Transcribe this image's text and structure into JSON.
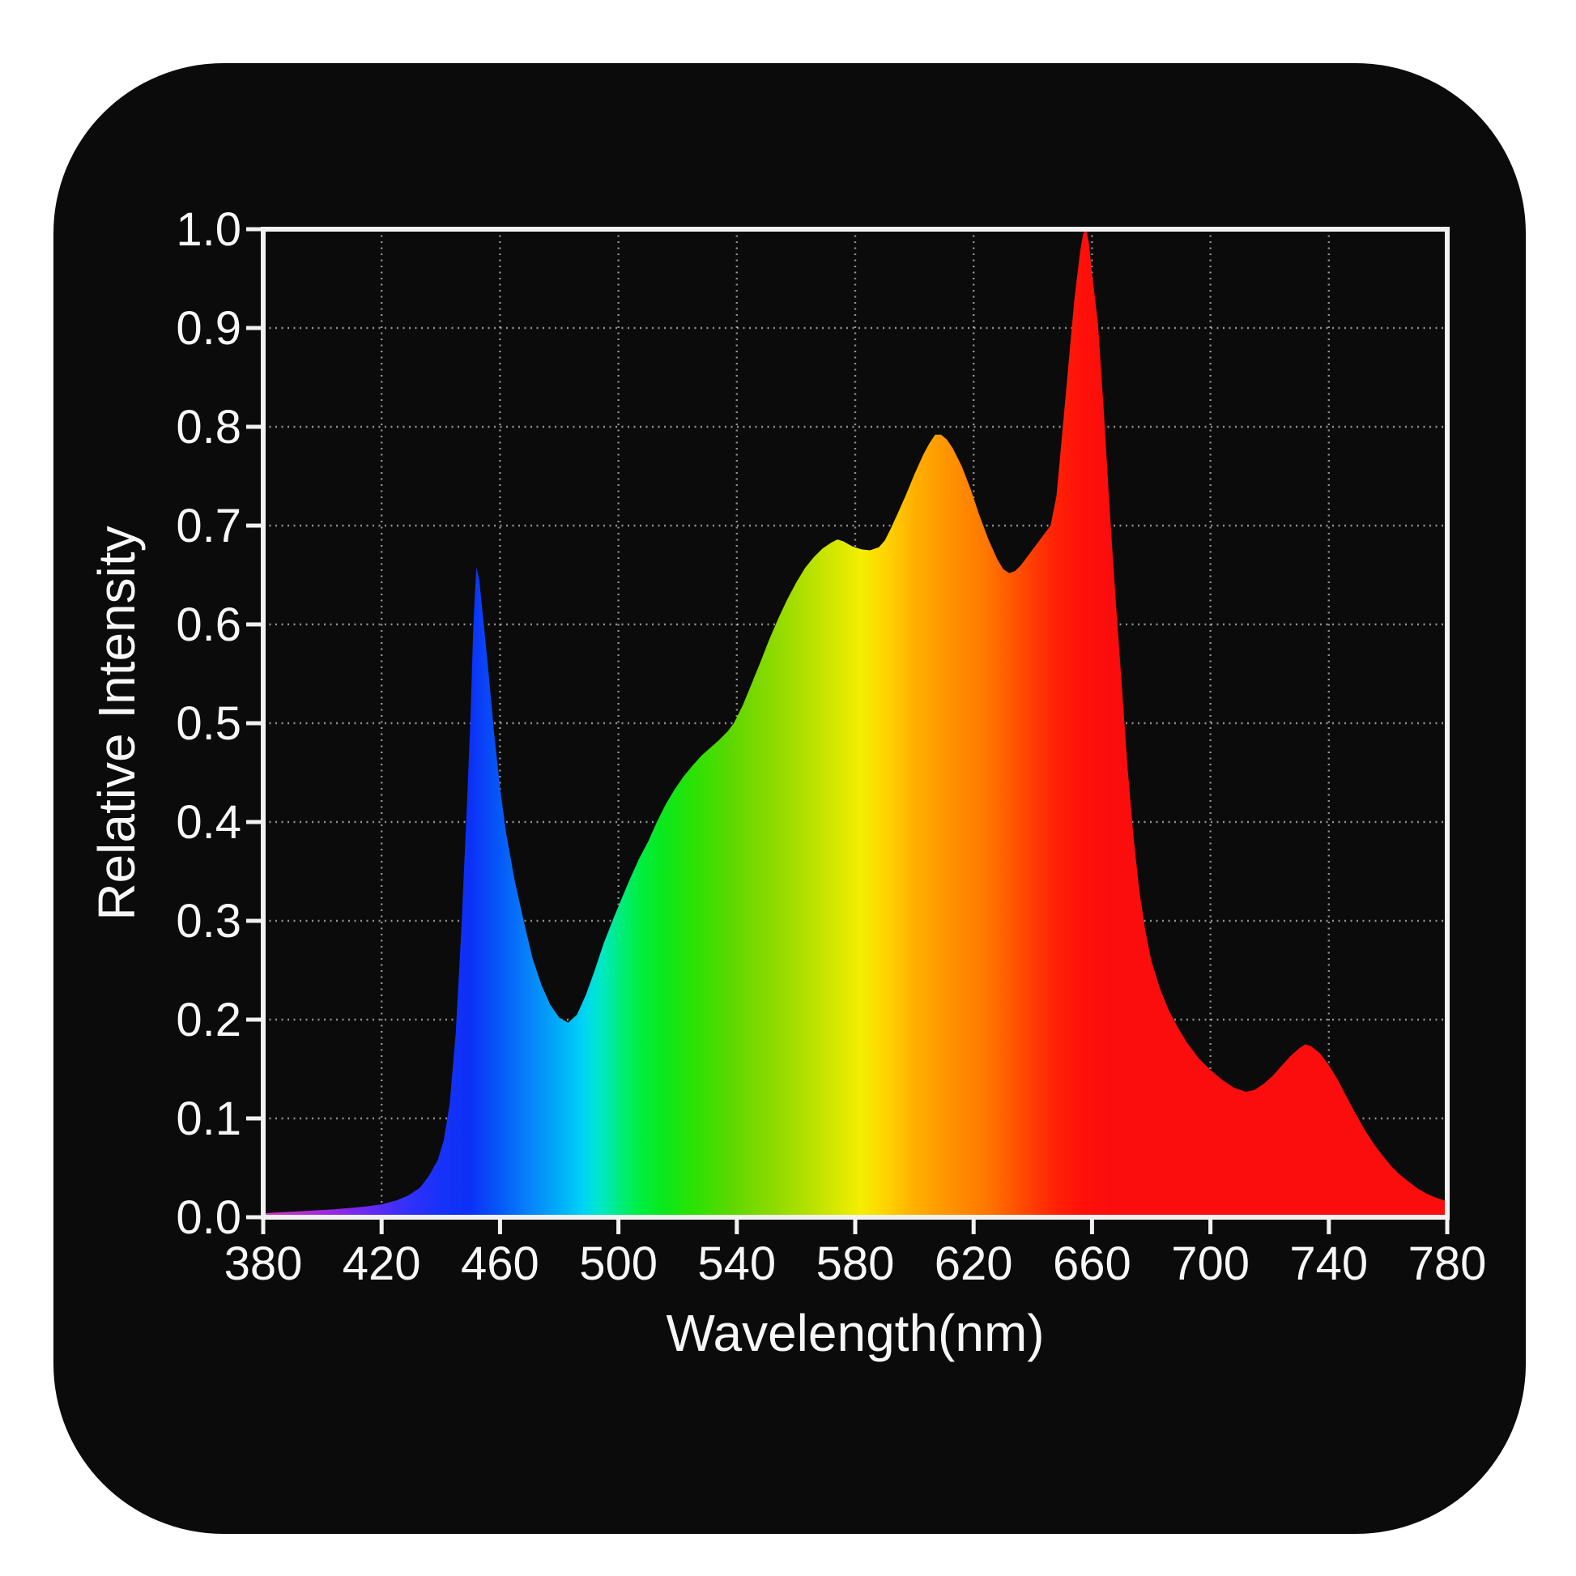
{
  "page": {
    "background": "#ffffff"
  },
  "card": {
    "background": "#0b0b0b"
  },
  "colors": {
    "text": "#f7f7f7",
    "frame": "#f2f2f2",
    "grid": "rgba(255,255,255,0.55)",
    "tick": "#f2f2f2"
  },
  "chart_data": {
    "type": "area",
    "title": "",
    "xlabel": "Wavelength(nm)",
    "ylabel": "Relative Intensity",
    "xlim": [
      380,
      780
    ],
    "ylim": [
      0.0,
      1.0
    ],
    "grid": {
      "style": "dotted",
      "vertical_every_nm": 40,
      "horizontal_every": 0.1
    },
    "x_ticks": [
      380,
      420,
      460,
      500,
      540,
      580,
      620,
      660,
      700,
      740,
      780
    ],
    "y_tick_values": [
      0.0,
      0.1,
      0.2,
      0.3,
      0.4,
      0.5,
      0.6,
      0.7,
      0.8,
      0.9,
      1.0
    ],
    "y_tick_labels": [
      "0.0",
      "0.1",
      "0.2",
      "0.3",
      "0.4",
      "0.5",
      "0.6",
      "0.7",
      "0.8",
      "0.9",
      "1.0"
    ],
    "features": {
      "blue_peak": {
        "nm": 452,
        "intensity": 0.66
      },
      "blue_green_valley": {
        "nm": 483,
        "intensity": 0.2
      },
      "yellow_local_peak": {
        "nm": 575,
        "intensity": 0.69
      },
      "orange_peak": {
        "nm": 607,
        "intensity": 0.79
      },
      "pre_red_dip": {
        "nm": 632,
        "intensity": 0.65
      },
      "red_peak": {
        "nm": 658,
        "intensity": 1.0
      },
      "far_red_bump": {
        "nm": 732,
        "intensity": 0.175
      }
    },
    "series": [
      {
        "name": "relative-intensity-spectrum",
        "points": [
          [
            380,
            0.004
          ],
          [
            386,
            0.005
          ],
          [
            392,
            0.006
          ],
          [
            398,
            0.007
          ],
          [
            404,
            0.008
          ],
          [
            410,
            0.0095
          ],
          [
            415,
            0.011
          ],
          [
            420,
            0.013
          ],
          [
            425,
            0.017
          ],
          [
            429,
            0.022
          ],
          [
            433,
            0.03
          ],
          [
            436,
            0.042
          ],
          [
            439,
            0.058
          ],
          [
            441,
            0.078
          ],
          [
            443,
            0.115
          ],
          [
            445,
            0.185
          ],
          [
            447,
            0.295
          ],
          [
            449,
            0.43
          ],
          [
            450,
            0.505
          ],
          [
            451,
            0.6
          ],
          [
            452,
            0.658
          ],
          [
            453,
            0.645
          ],
          [
            454,
            0.615
          ],
          [
            456,
            0.555
          ],
          [
            458,
            0.49
          ],
          [
            460,
            0.435
          ],
          [
            462,
            0.39
          ],
          [
            465,
            0.34
          ],
          [
            468,
            0.3
          ],
          [
            471,
            0.262
          ],
          [
            474,
            0.235
          ],
          [
            477,
            0.215
          ],
          [
            480,
            0.202
          ],
          [
            483,
            0.197
          ],
          [
            486,
            0.205
          ],
          [
            489,
            0.225
          ],
          [
            492,
            0.25
          ],
          [
            495,
            0.277
          ],
          [
            498,
            0.3
          ],
          [
            501,
            0.322
          ],
          [
            504,
            0.343
          ],
          [
            507,
            0.363
          ],
          [
            510,
            0.38
          ],
          [
            513,
            0.4
          ],
          [
            516,
            0.418
          ],
          [
            519,
            0.433
          ],
          [
            522,
            0.446
          ],
          [
            525,
            0.457
          ],
          [
            528,
            0.467
          ],
          [
            531,
            0.475
          ],
          [
            534,
            0.483
          ],
          [
            537,
            0.492
          ],
          [
            539,
            0.5
          ],
          [
            542,
            0.518
          ],
          [
            545,
            0.54
          ],
          [
            548,
            0.562
          ],
          [
            551,
            0.585
          ],
          [
            554,
            0.606
          ],
          [
            557,
            0.625
          ],
          [
            560,
            0.642
          ],
          [
            563,
            0.657
          ],
          [
            566,
            0.668
          ],
          [
            569,
            0.677
          ],
          [
            572,
            0.683
          ],
          [
            574,
            0.686
          ],
          [
            576,
            0.684
          ],
          [
            579,
            0.679
          ],
          [
            582,
            0.676
          ],
          [
            585,
            0.675
          ],
          [
            588,
            0.678
          ],
          [
            590,
            0.685
          ],
          [
            592,
            0.697
          ],
          [
            594,
            0.71
          ],
          [
            597,
            0.73
          ],
          [
            600,
            0.752
          ],
          [
            603,
            0.772
          ],
          [
            605,
            0.783
          ],
          [
            607,
            0.792
          ],
          [
            609,
            0.792
          ],
          [
            611,
            0.787
          ],
          [
            613,
            0.778
          ],
          [
            616,
            0.76
          ],
          [
            619,
            0.737
          ],
          [
            622,
            0.71
          ],
          [
            625,
            0.686
          ],
          [
            628,
            0.666
          ],
          [
            630,
            0.656
          ],
          [
            632,
            0.652
          ],
          [
            634,
            0.654
          ],
          [
            636,
            0.66
          ],
          [
            638,
            0.668
          ],
          [
            640,
            0.676
          ],
          [
            642,
            0.684
          ],
          [
            644,
            0.692
          ],
          [
            646,
            0.7
          ],
          [
            648,
            0.73
          ],
          [
            650,
            0.795
          ],
          [
            652,
            0.862
          ],
          [
            654,
            0.928
          ],
          [
            656,
            0.978
          ],
          [
            657,
            0.995
          ],
          [
            658,
            1.0
          ],
          [
            659,
            0.985
          ],
          [
            660,
            0.955
          ],
          [
            662,
            0.905
          ],
          [
            664,
            0.815
          ],
          [
            666,
            0.715
          ],
          [
            668,
            0.625
          ],
          [
            670,
            0.54
          ],
          [
            672,
            0.455
          ],
          [
            674,
            0.385
          ],
          [
            676,
            0.33
          ],
          [
            678,
            0.29
          ],
          [
            680,
            0.26
          ],
          [
            683,
            0.231
          ],
          [
            686,
            0.209
          ],
          [
            689,
            0.192
          ],
          [
            692,
            0.177
          ],
          [
            696,
            0.161
          ],
          [
            700,
            0.149
          ],
          [
            704,
            0.139
          ],
          [
            708,
            0.131
          ],
          [
            712,
            0.127
          ],
          [
            715,
            0.129
          ],
          [
            718,
            0.135
          ],
          [
            721,
            0.143
          ],
          [
            724,
            0.153
          ],
          [
            727,
            0.163
          ],
          [
            730,
            0.171
          ],
          [
            732,
            0.175
          ],
          [
            734,
            0.173
          ],
          [
            737,
            0.166
          ],
          [
            740,
            0.154
          ],
          [
            743,
            0.139
          ],
          [
            746,
            0.122
          ],
          [
            749,
            0.105
          ],
          [
            752,
            0.089
          ],
          [
            755,
            0.075
          ],
          [
            758,
            0.063
          ],
          [
            761,
            0.052
          ],
          [
            764,
            0.043
          ],
          [
            767,
            0.036
          ],
          [
            770,
            0.029
          ],
          [
            773,
            0.024
          ],
          [
            776,
            0.02
          ],
          [
            778,
            0.018
          ],
          [
            780,
            0.016
          ]
        ]
      }
    ],
    "gradient_stops": [
      [
        380,
        "#e035c0"
      ],
      [
        394,
        "#b42ad8"
      ],
      [
        406,
        "#8f28e8"
      ],
      [
        418,
        "#5c2bf6"
      ],
      [
        428,
        "#3530fb"
      ],
      [
        440,
        "#1632f9"
      ],
      [
        450,
        "#0c30f5"
      ],
      [
        460,
        "#0659f9"
      ],
      [
        470,
        "#0783fa"
      ],
      [
        480,
        "#00adf7"
      ],
      [
        488,
        "#00d2f5"
      ],
      [
        494,
        "#00e8c8"
      ],
      [
        500,
        "#00ec84"
      ],
      [
        507,
        "#00ee42"
      ],
      [
        515,
        "#0ae81c"
      ],
      [
        525,
        "#2ae204"
      ],
      [
        538,
        "#5cd800"
      ],
      [
        552,
        "#8cda00"
      ],
      [
        564,
        "#b4e000"
      ],
      [
        574,
        "#d8e800"
      ],
      [
        582,
        "#f4ee00"
      ],
      [
        590,
        "#ffd400"
      ],
      [
        600,
        "#ffb000"
      ],
      [
        608,
        "#ff9c00"
      ],
      [
        616,
        "#ff8a00"
      ],
      [
        624,
        "#ff7800"
      ],
      [
        632,
        "#ff5b00"
      ],
      [
        640,
        "#ff3c04"
      ],
      [
        648,
        "#ff2106"
      ],
      [
        656,
        "#fe1109"
      ],
      [
        666,
        "#fb0d0d"
      ],
      [
        780,
        "#fb0d0d"
      ]
    ]
  }
}
